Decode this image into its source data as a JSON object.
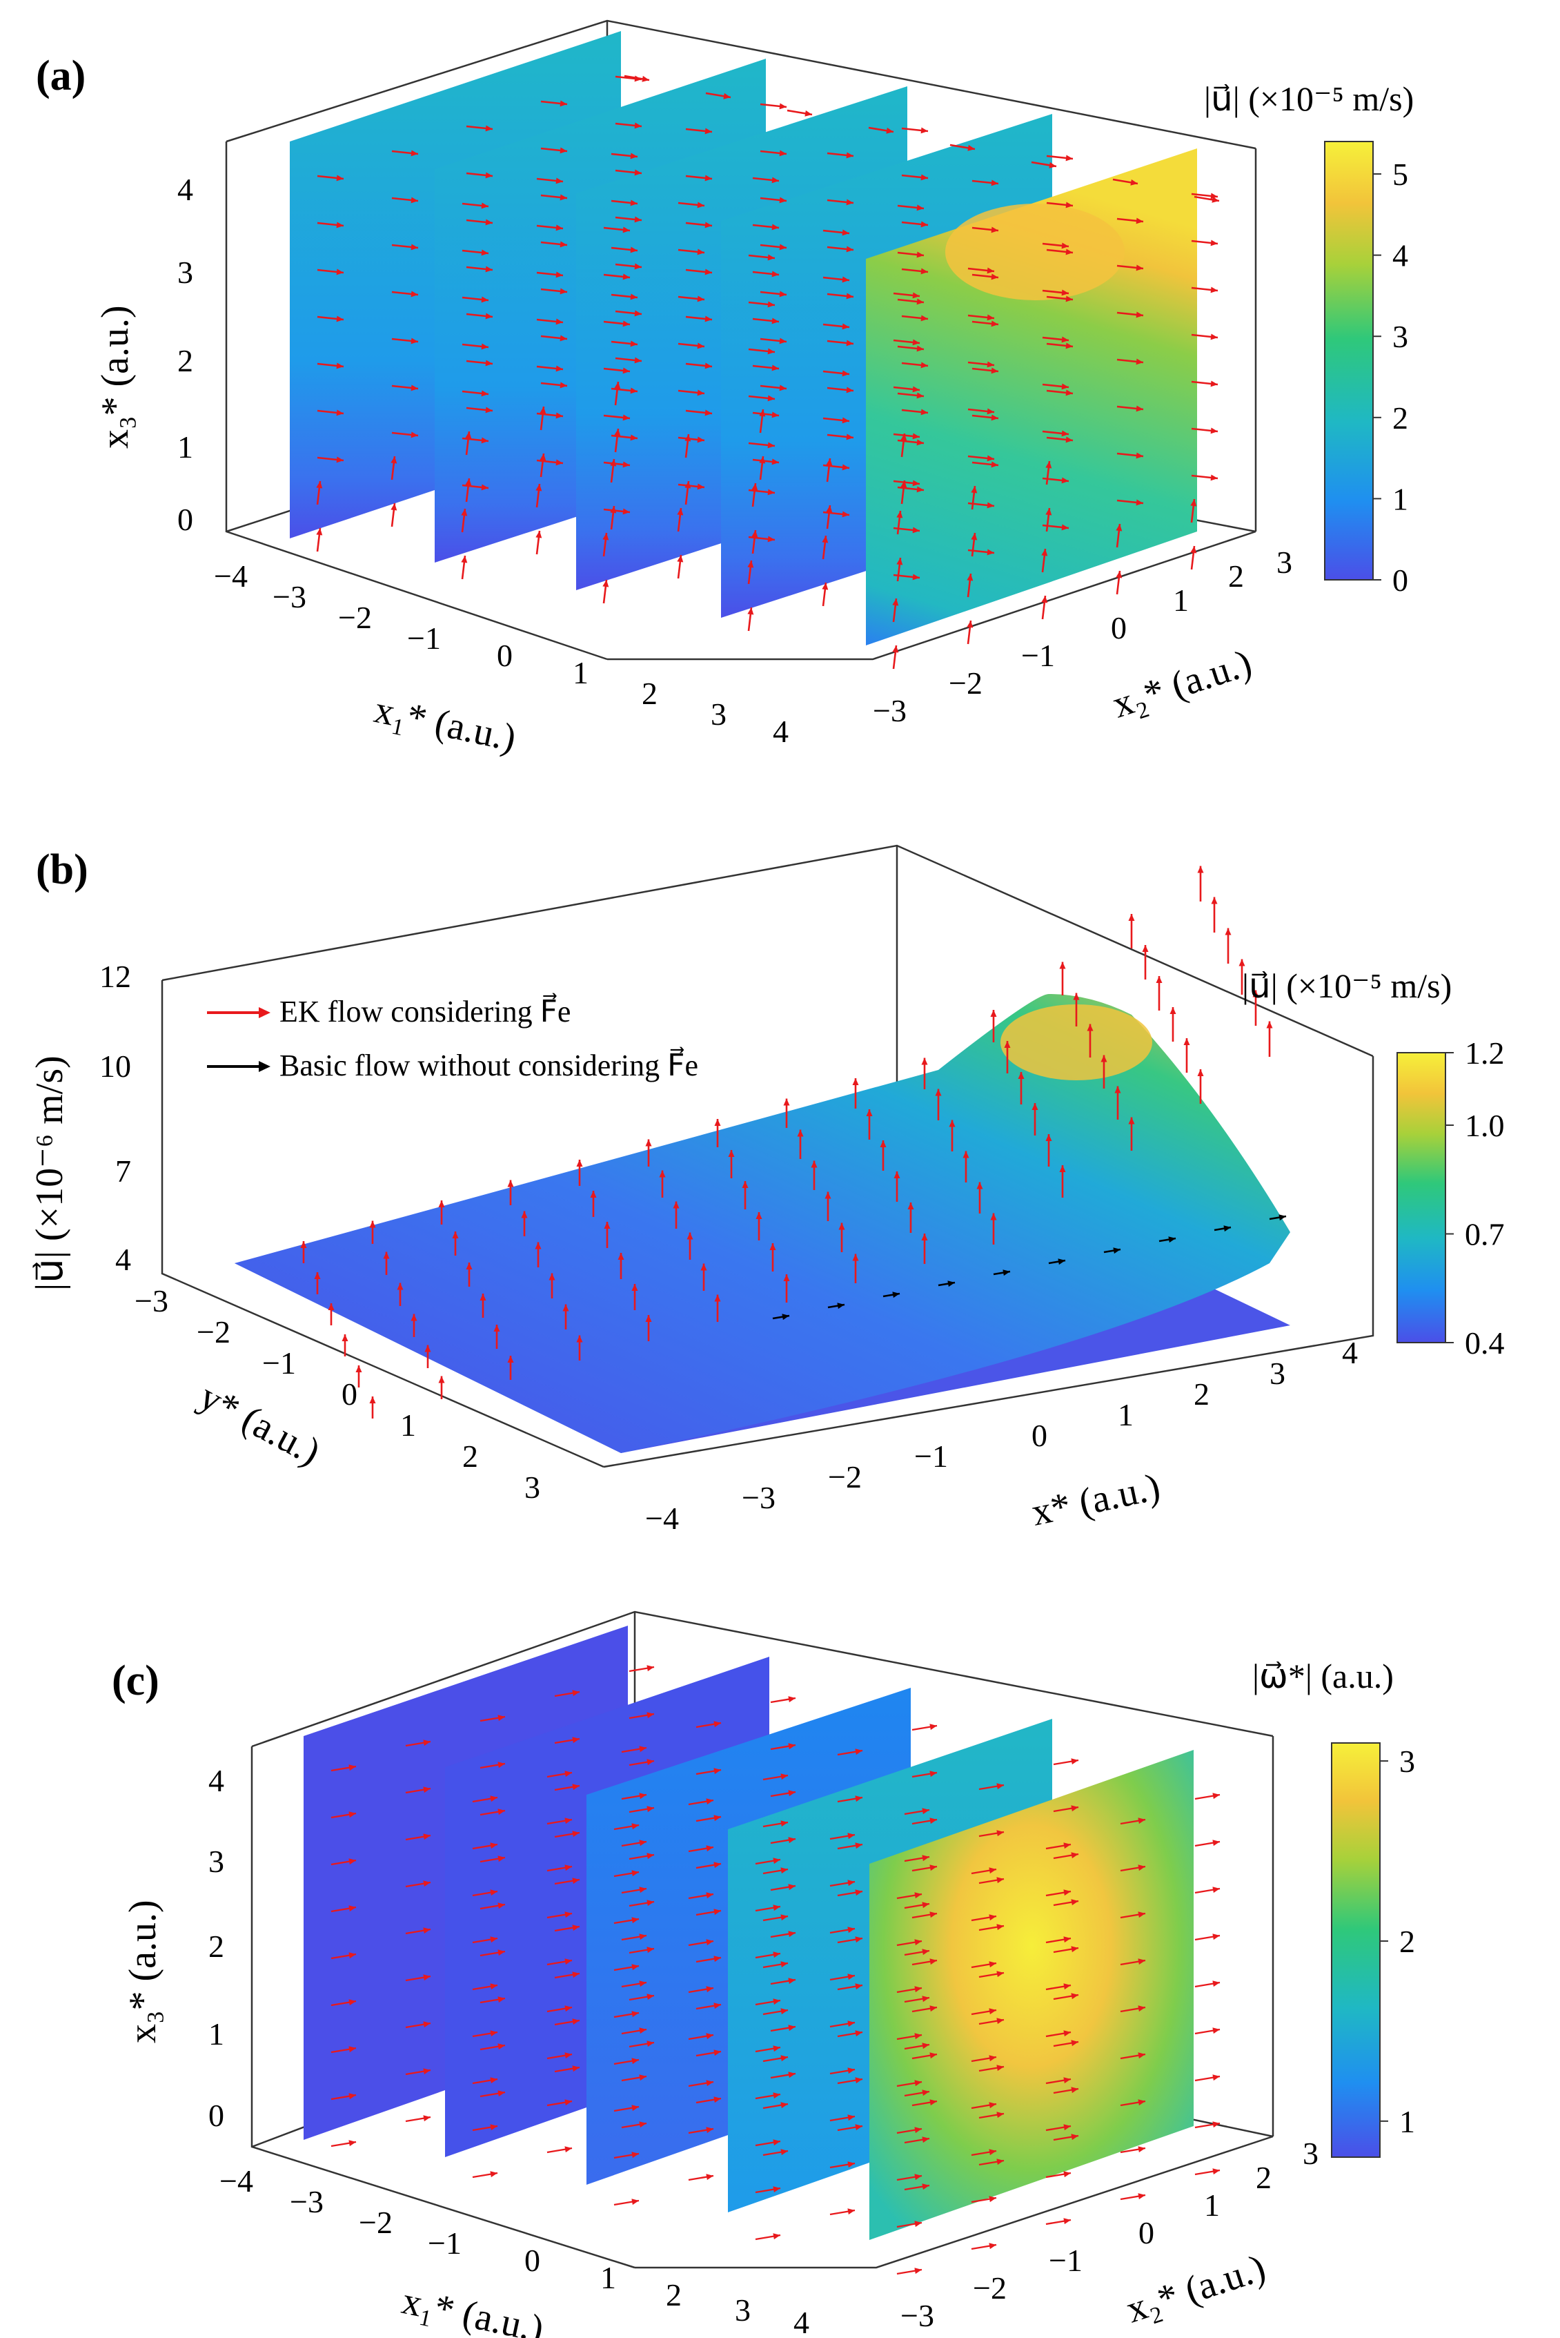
{
  "colors": {
    "arrow_ek": "#e8191c",
    "arrow_basic": "#000000",
    "cmap": [
      "#4b4fe8",
      "#1f8ff0",
      "#1fb8c4",
      "#2fc87a",
      "#a8d13a",
      "#f2c43a",
      "#f6f03a"
    ]
  },
  "chart_data": [
    {
      "panel": "(a)",
      "type": "slice-surface-quiver-3d",
      "xlabel": "x₁* (a.u.)",
      "ylabel": "x₂* (a.u.)",
      "zlabel": "x₃* (a.u.)",
      "x_ticks": [
        "−4",
        "−3",
        "−2",
        "−1",
        "0",
        "1",
        "2",
        "3",
        "4"
      ],
      "y_ticks": [
        "−3",
        "−2",
        "−1",
        "0",
        "1",
        "2",
        "3"
      ],
      "z_ticks": [
        "0",
        "1",
        "2",
        "3",
        "4"
      ],
      "slice_positions_x1": [
        -3,
        -1.5,
        0,
        1.5,
        3
      ],
      "colorbar": {
        "title": "|u⃗| (×10⁻⁵ m/s)",
        "ticks": [
          "0",
          "1",
          "2",
          "3",
          "4",
          "5"
        ],
        "range": [
          0,
          5.4
        ]
      }
    },
    {
      "panel": "(b)",
      "type": "surface-quiver-3d",
      "xlabel": "x* (a.u.)",
      "ylabel": "y* (a.u.)",
      "zlabel": "|u⃗| (×10⁻⁶ m/s)",
      "x_ticks": [
        "−4",
        "−3",
        "−2",
        "−1",
        "0",
        "1",
        "2",
        "3",
        "4"
      ],
      "y_ticks": [
        "−3",
        "−2",
        "−1",
        "0",
        "1",
        "2",
        "3"
      ],
      "z_ticks": [
        "4",
        "7",
        "10",
        "12"
      ],
      "legend": [
        {
          "label": "EK flow considering F⃗e",
          "color": "#e8191c"
        },
        {
          "label": "Basic flow without considering F⃗e",
          "color": "#000000"
        }
      ],
      "colorbar": {
        "title": "|u⃗| (×10⁻⁵ m/s)",
        "ticks": [
          "0.4",
          "0.7",
          "1.0",
          "1.2"
        ],
        "range": [
          0.4,
          1.2
        ]
      }
    },
    {
      "panel": "(c)",
      "type": "slice-surface-quiver-3d",
      "xlabel": "x₁* (a.u.)",
      "ylabel": "x₂* (a.u.)",
      "zlabel": "x₃* (a.u.)",
      "x_ticks": [
        "−4",
        "−3",
        "−2",
        "−1",
        "0",
        "1",
        "2",
        "3",
        "4"
      ],
      "y_ticks": [
        "−3",
        "−2",
        "−1",
        "0",
        "1",
        "2",
        "3"
      ],
      "z_ticks": [
        "0",
        "1",
        "2",
        "3",
        "4"
      ],
      "slice_positions_x1": [
        -3,
        -1.5,
        0,
        1.5,
        3
      ],
      "colorbar": {
        "title": "|ω⃗*| (a.u.)",
        "ticks": [
          "1",
          "2",
          "3"
        ],
        "range": [
          0.8,
          3.1
        ]
      }
    }
  ]
}
